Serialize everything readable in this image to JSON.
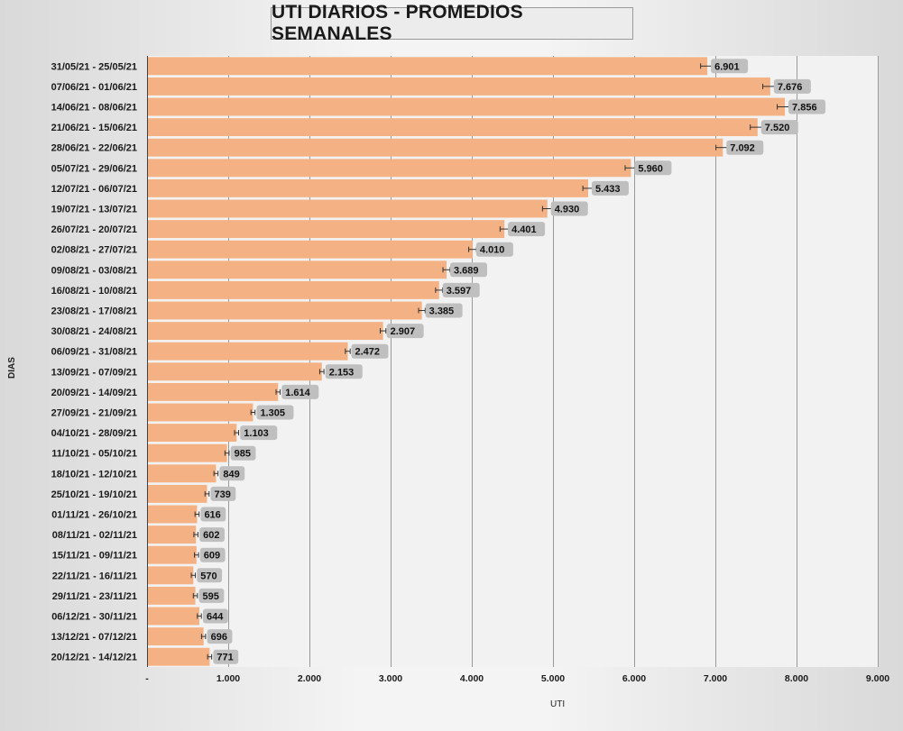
{
  "chart_data": {
    "type": "bar",
    "orientation": "horizontal",
    "title": "UTI DIARIOS - PROMEDIOS SEMANALES",
    "xlabel": "UTI",
    "ylabel": "DIAS",
    "xlim": [
      0,
      9000
    ],
    "x_ticks": [
      0,
      1000,
      2000,
      3000,
      4000,
      5000,
      6000,
      7000,
      8000,
      9000
    ],
    "x_tick_labels": [
      "-",
      "1.000",
      "2.000",
      "3.000",
      "4.000",
      "5.000",
      "6.000",
      "7.000",
      "8.000",
      "9.000"
    ],
    "grid": "vertical",
    "error_bars": true,
    "bar_color": "#f4b183",
    "categories": [
      "31/05/21 - 25/05/21",
      "07/06/21 - 01/06/21",
      "14/06/21 - 08/06/21",
      "21/06/21 - 15/06/21",
      "28/06/21 - 22/06/21",
      "05/07/21 - 29/06/21",
      "12/07/21 - 06/07/21",
      "19/07/21 - 13/07/21",
      "26/07/21 - 20/07/21",
      "02/08/21 - 27/07/21",
      "09/08/21 - 03/08/21",
      "16/08/21 - 10/08/21",
      "23/08/21 - 17/08/21",
      "30/08/21 - 24/08/21",
      "06/09/21 - 31/08/21",
      "13/09/21 - 07/09/21",
      "20/09/21 - 14/09/21",
      "27/09/21 - 21/09/21",
      "04/10/21 - 28/09/21",
      "11/10/21 - 05/10/21",
      "18/10/21 - 12/10/21",
      "25/10/21 - 19/10/21",
      "01/11/21 - 26/10/21",
      "08/11/21 - 02/11/21",
      "15/11/21 - 09/11/21",
      "22/11/21 - 16/11/21",
      "29/11/21 - 23/11/21",
      "06/12/21 - 30/11/21",
      "13/12/21 - 07/12/21",
      "20/12/21 - 14/12/21"
    ],
    "values": [
      6901,
      7676,
      7856,
      7520,
      7092,
      5960,
      5433,
      4930,
      4401,
      4010,
      3689,
      3597,
      3385,
      2907,
      2472,
      2153,
      1614,
      1305,
      1103,
      985,
      849,
      739,
      616,
      602,
      609,
      570,
      595,
      644,
      696,
      771
    ],
    "value_labels": [
      "6.901",
      "7.676",
      "7.856",
      "7.520",
      "7.092",
      "5.960",
      "5.433",
      "4.930",
      "4.401",
      "4.010",
      "3.689",
      "3.597",
      "3.385",
      "2.907",
      "2.472",
      "2.153",
      "1.614",
      "1.305",
      "1.103",
      "985",
      "849",
      "739",
      "616",
      "602",
      "609",
      "570",
      "595",
      "644",
      "696",
      "771"
    ]
  }
}
